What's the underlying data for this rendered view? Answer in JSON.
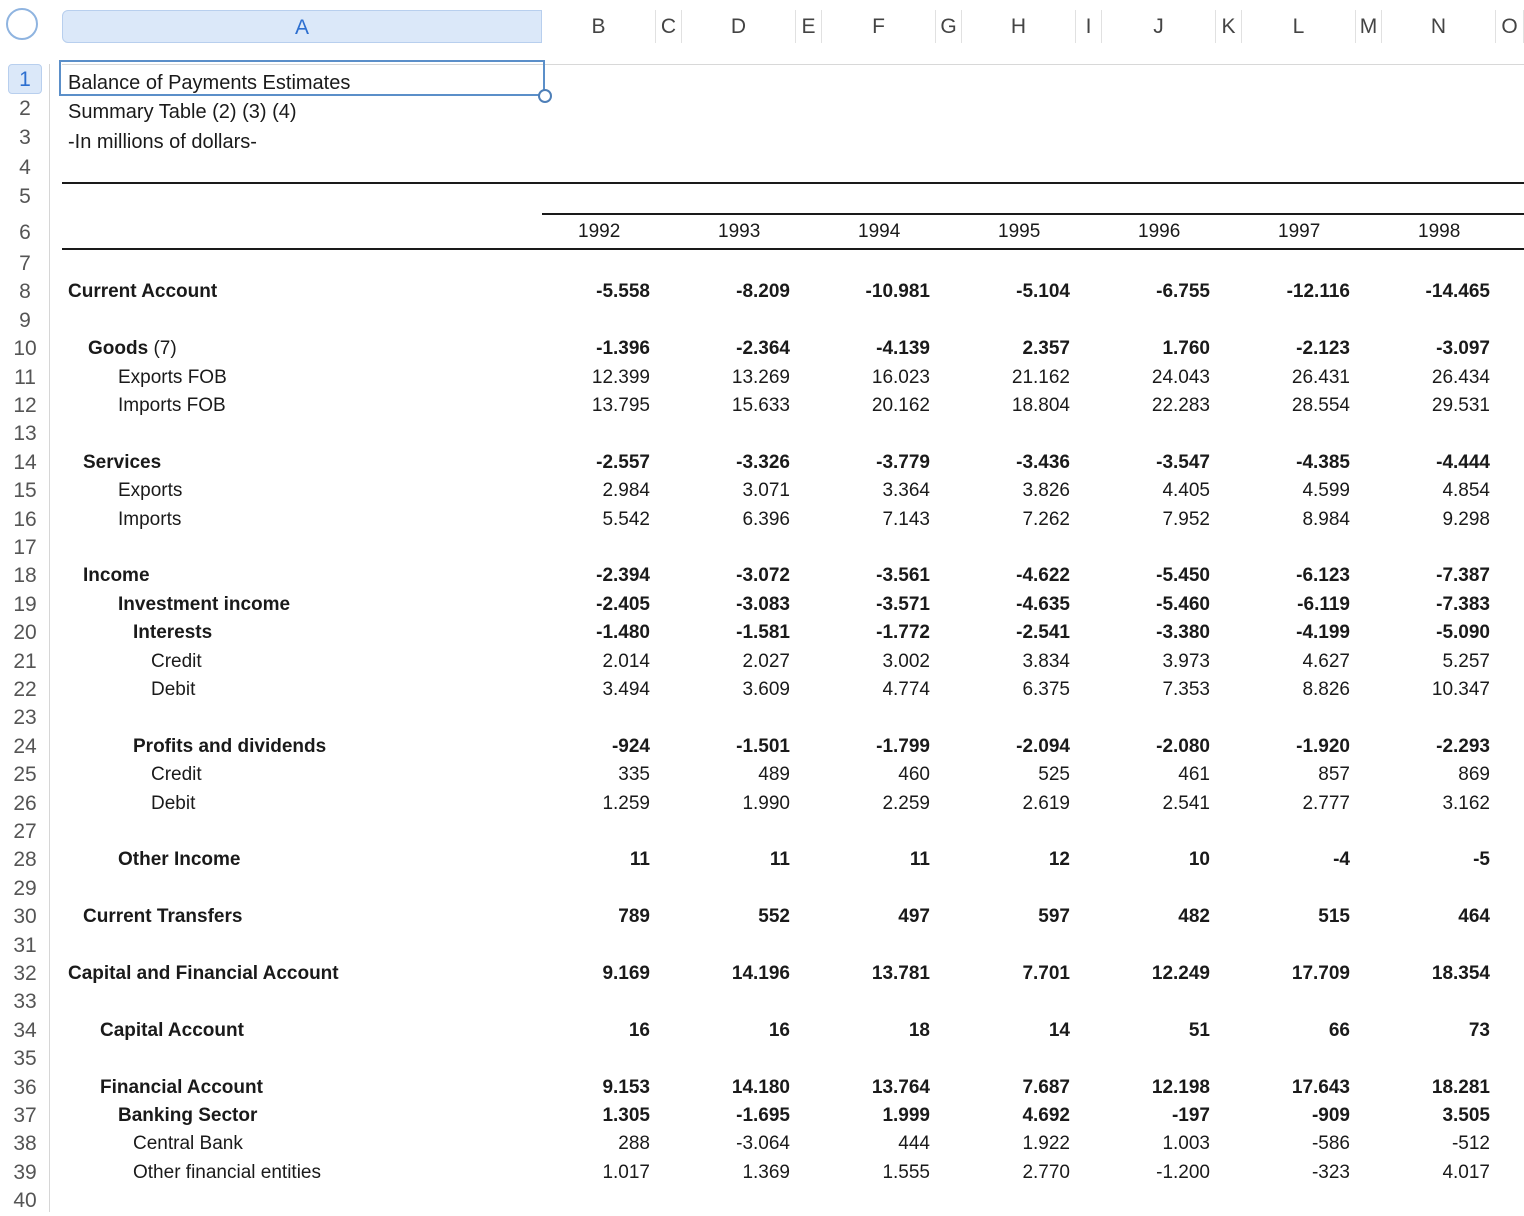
{
  "columns": [
    "A",
    "B",
    "C",
    "D",
    "E",
    "F",
    "G",
    "H",
    "I",
    "J",
    "K",
    "L",
    "M",
    "N",
    "O"
  ],
  "selected_column": "A",
  "selected_row": "1",
  "title_lines": [
    "Balance of Payments Estimates",
    "Summary Table (2) (3) (4)",
    "-In millions of dollars-"
  ],
  "years": [
    "1992",
    "1993",
    "1994",
    "1995",
    "1996",
    "1997",
    "1998"
  ],
  "rows": [
    {
      "row": 8,
      "label": "Current Account",
      "bold": true,
      "indent": 0,
      "values": [
        "-5.558",
        "-8.209",
        "-10.981",
        "-5.104",
        "-6.755",
        "-12.116",
        "-14.465"
      ]
    },
    {
      "row": 10,
      "label": "Goods",
      "suffix": " (7)",
      "bold": true,
      "indent": 1,
      "values": [
        "-1.396",
        "-2.364",
        "-4.139",
        "2.357",
        "1.760",
        "-2.123",
        "-3.097"
      ]
    },
    {
      "row": 11,
      "label": "Exports FOB",
      "bold": false,
      "indent": 3,
      "values": [
        "12.399",
        "13.269",
        "16.023",
        "21.162",
        "24.043",
        "26.431",
        "26.434"
      ]
    },
    {
      "row": 12,
      "label": "Imports FOB",
      "bold": false,
      "indent": 3,
      "values": [
        "13.795",
        "15.633",
        "20.162",
        "18.804",
        "22.283",
        "28.554",
        "29.531"
      ]
    },
    {
      "row": 14,
      "label": "Services",
      "bold": true,
      "indent": 2,
      "values": [
        "-2.557",
        "-3.326",
        "-3.779",
        "-3.436",
        "-3.547",
        "-4.385",
        "-4.444"
      ]
    },
    {
      "row": 15,
      "label": "Exports",
      "bold": false,
      "indent": 3,
      "values": [
        "2.984",
        "3.071",
        "3.364",
        "3.826",
        "4.405",
        "4.599",
        "4.854"
      ]
    },
    {
      "row": 16,
      "label": "Imports",
      "bold": false,
      "indent": 3,
      "values": [
        "5.542",
        "6.396",
        "7.143",
        "7.262",
        "7.952",
        "8.984",
        "9.298"
      ]
    },
    {
      "row": 18,
      "label": "Income",
      "bold": true,
      "indent": 2,
      "values": [
        "-2.394",
        "-3.072",
        "-3.561",
        "-4.622",
        "-5.450",
        "-6.123",
        "-7.387"
      ]
    },
    {
      "row": 19,
      "label": "Investment income",
      "bold": true,
      "indent": 3,
      "values": [
        "-2.405",
        "-3.083",
        "-3.571",
        "-4.635",
        "-5.460",
        "-6.119",
        "-7.383"
      ]
    },
    {
      "row": 20,
      "label": "Interests",
      "bold": true,
      "indent": 4,
      "values": [
        "-1.480",
        "-1.581",
        "-1.772",
        "-2.541",
        "-3.380",
        "-4.199",
        "-5.090"
      ]
    },
    {
      "row": 21,
      "label": "Credit",
      "bold": false,
      "indent": 5,
      "values": [
        "2.014",
        "2.027",
        "3.002",
        "3.834",
        "3.973",
        "4.627",
        "5.257"
      ]
    },
    {
      "row": 22,
      "label": "Debit",
      "bold": false,
      "indent": 5,
      "values": [
        "3.494",
        "3.609",
        "4.774",
        "6.375",
        "7.353",
        "8.826",
        "10.347"
      ]
    },
    {
      "row": 24,
      "label": "Profits and dividends",
      "bold": true,
      "indent": 4,
      "values": [
        "-924",
        "-1.501",
        "-1.799",
        "-2.094",
        "-2.080",
        "-1.920",
        "-2.293"
      ]
    },
    {
      "row": 25,
      "label": "Credit",
      "bold": false,
      "indent": 5,
      "values": [
        "335",
        "489",
        "460",
        "525",
        "461",
        "857",
        "869"
      ]
    },
    {
      "row": 26,
      "label": "Debit",
      "bold": false,
      "indent": 5,
      "values": [
        "1.259",
        "1.990",
        "2.259",
        "2.619",
        "2.541",
        "2.777",
        "3.162"
      ]
    },
    {
      "row": 28,
      "label": "Other Income",
      "bold": true,
      "indent": 3,
      "values": [
        "11",
        "11",
        "11",
        "12",
        "10",
        "-4",
        "-5"
      ]
    },
    {
      "row": 30,
      "label": "Current Transfers",
      "bold": true,
      "indent": 2,
      "values": [
        "789",
        "552",
        "497",
        "597",
        "482",
        "515",
        "464"
      ]
    },
    {
      "row": 32,
      "label": "Capital and Financial Account",
      "bold": true,
      "indent": 0,
      "values": [
        "9.169",
        "14.196",
        "13.781",
        "7.701",
        "12.249",
        "17.709",
        "18.354"
      ]
    },
    {
      "row": 34,
      "label": "Capital Account",
      "bold": true,
      "indent": 6,
      "values": [
        "16",
        "16",
        "18",
        "14",
        "51",
        "66",
        "73"
      ]
    },
    {
      "row": 36,
      "label": "Financial Account",
      "bold": true,
      "indent": 6,
      "values": [
        "9.153",
        "14.180",
        "13.764",
        "7.687",
        "12.198",
        "17.643",
        "18.281"
      ]
    },
    {
      "row": 37,
      "label": "Banking Sector",
      "bold": true,
      "indent": 3,
      "values": [
        "1.305",
        "-1.695",
        "1.999",
        "4.692",
        "-197",
        "-909",
        "3.505"
      ]
    },
    {
      "row": 38,
      "label": "Central Bank",
      "bold": false,
      "indent": 4,
      "values": [
        "288",
        "-3.064",
        "444",
        "1.922",
        "1.003",
        "-586",
        "-512"
      ]
    },
    {
      "row": 39,
      "label": "Other financial entities",
      "bold": false,
      "indent": 4,
      "values": [
        "1.017",
        "1.369",
        "1.555",
        "2.770",
        "-1.200",
        "-323",
        "4.017"
      ]
    }
  ]
}
